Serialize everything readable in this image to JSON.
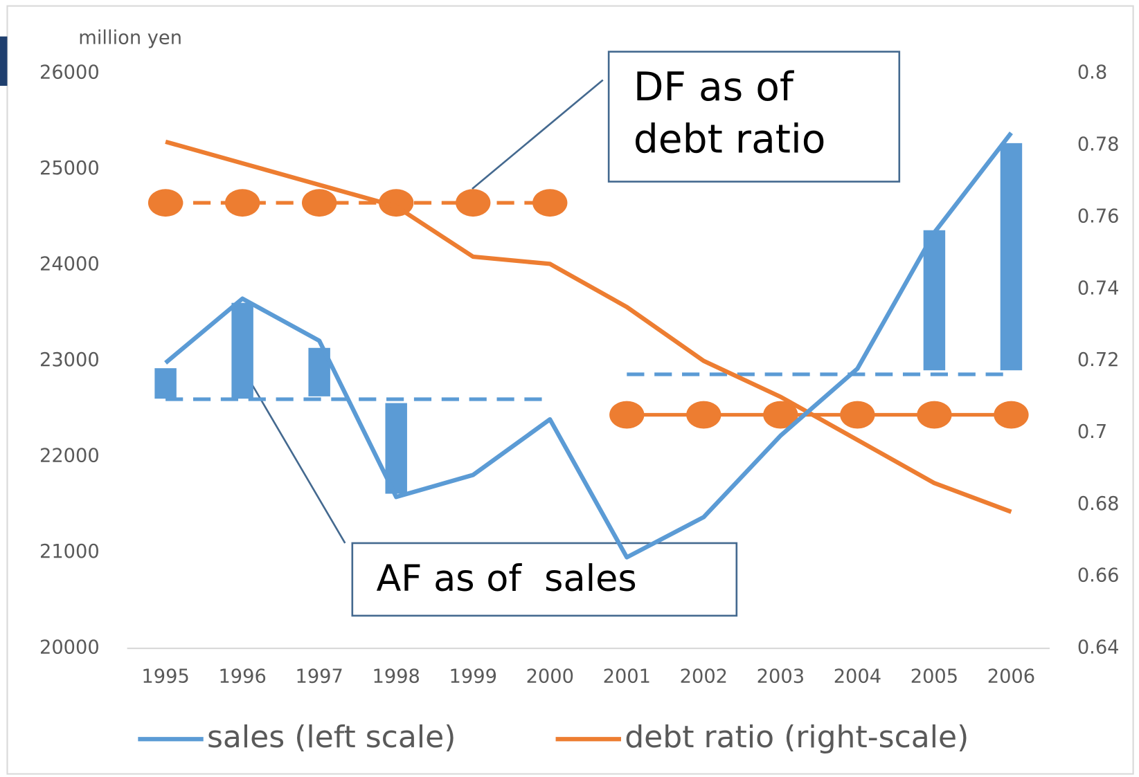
{
  "chart_data": {
    "type": "line",
    "ylabel": "million yen",
    "categories": [
      "1995",
      "1996",
      "1997",
      "1998",
      "1999",
      "2000",
      "2001",
      "2002",
      "2003",
      "2004",
      "2005",
      "2006"
    ],
    "ylim": [
      20000,
      26000
    ],
    "yticks": [
      20000,
      21000,
      22000,
      23000,
      24000,
      25000,
      26000
    ],
    "y2lim": [
      0.64,
      0.8
    ],
    "y2ticks": [
      0.64,
      0.66,
      0.68,
      0.7,
      0.72,
      0.74,
      0.76,
      0.78,
      0.8
    ],
    "series": [
      {
        "name": "sales (left scale)",
        "color": "#5b9bd5",
        "axis": "y",
        "values": [
          22980,
          23650,
          23210,
          21580,
          21810,
          22390,
          20950,
          21370,
          22220,
          22920,
          24340,
          25380
        ]
      },
      {
        "name": "debt ratio (right-scale)",
        "color": "#ed7d31",
        "axis": "y2",
        "values": [
          0.781,
          0.775,
          0.769,
          0.763,
          0.749,
          0.747,
          0.735,
          0.72,
          0.71,
          0.698,
          0.686,
          0.678
        ]
      },
      {
        "color": "#5b9bd5",
        "axis": "y",
        "dash": true,
        "markers": false,
        "values": [
          22600,
          22600,
          22600,
          22600,
          22600,
          22600,
          null,
          null,
          null,
          null,
          null,
          null
        ]
      },
      {
        "color": "#5b9bd5",
        "axis": "y",
        "dash": true,
        "markers": false,
        "values": [
          null,
          null,
          null,
          null,
          null,
          null,
          22860,
          22860,
          22860,
          22860,
          22860,
          22860
        ]
      },
      {
        "color": "#ed7d31",
        "axis": "y2",
        "dash": true,
        "markers": true,
        "values": [
          0.764,
          0.764,
          0.764,
          0.764,
          0.764,
          0.764,
          null,
          null,
          null,
          null,
          null,
          null
        ]
      },
      {
        "color": "#ed7d31",
        "axis": "y2",
        "dash": false,
        "markers": true,
        "values": [
          null,
          null,
          null,
          null,
          null,
          null,
          0.705,
          0.705,
          0.705,
          0.705,
          0.705,
          0.705
        ]
      }
    ],
    "range_bars": {
      "color": "#5b9bd5",
      "low": [
        22606,
        22606,
        22630,
        21614,
        null,
        null,
        null,
        null,
        null,
        null,
        22902,
        22902
      ],
      "high": [
        22924,
        23606,
        23136,
        22560,
        null,
        null,
        null,
        null,
        null,
        null,
        24364,
        25273
      ]
    },
    "annotations": [
      {
        "text": [
          "DF as of",
          "debt ratio"
        ]
      },
      {
        "text": [
          "AF as of  sales"
        ]
      }
    ]
  }
}
